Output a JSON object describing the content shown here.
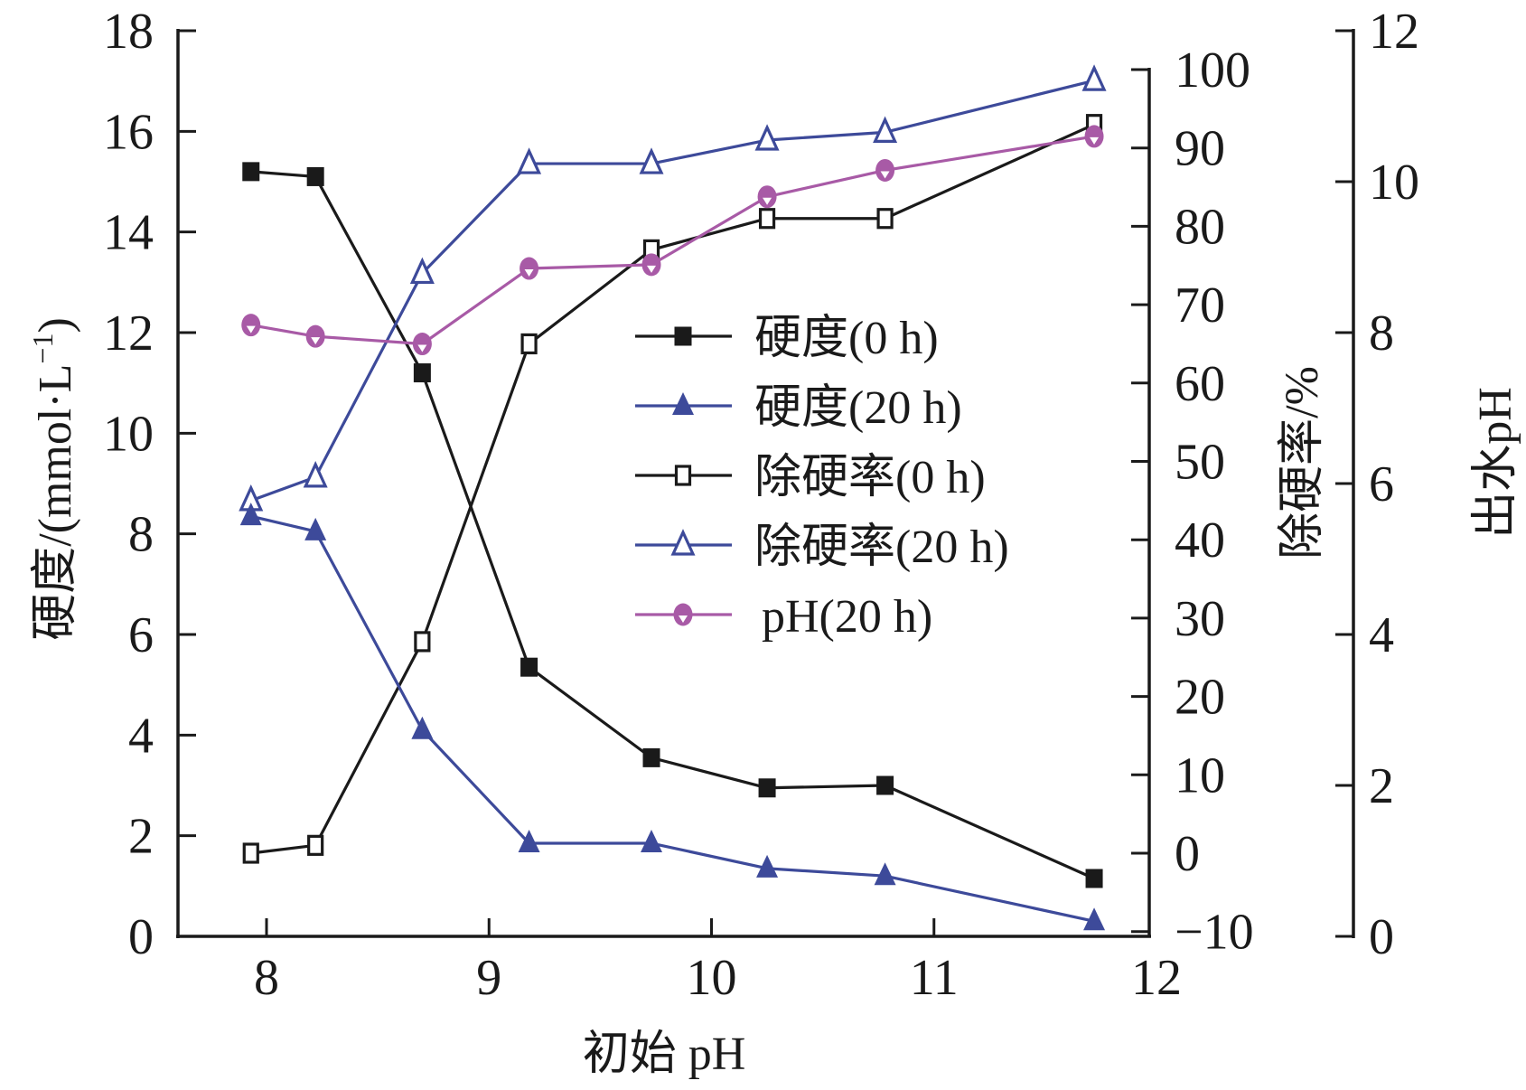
{
  "chart_data": {
    "type": "line",
    "title": "",
    "xlabel": "初始 pH",
    "xlim": [
      7.6,
      12
    ],
    "xticks": [
      "8",
      "9",
      "10",
      "11",
      "12"
    ],
    "y_axes": [
      {
        "id": "left",
        "label": "硬度/(mmol·L",
        "label_sup": "−1",
        "label_close": ")",
        "ylim": [
          0,
          18
        ],
        "ticks": [
          "0",
          "2",
          "4",
          "6",
          "8",
          "10",
          "12",
          "14",
          "16",
          "18"
        ]
      },
      {
        "id": "middle",
        "label": "除硬率/%",
        "ylim": [
          -10,
          100
        ],
        "ticks": [
          "−10",
          "0",
          "10",
          "20",
          "30",
          "40",
          "50",
          "60",
          "70",
          "80",
          "90",
          "100"
        ]
      },
      {
        "id": "right",
        "label": "出水pH",
        "ylim": [
          0,
          12
        ],
        "ticks": [
          "0",
          "2",
          "4",
          "6",
          "8",
          "10",
          "12"
        ]
      }
    ],
    "x": [
      7.93,
      8.22,
      8.7,
      9.18,
      9.73,
      10.25,
      10.78,
      11.72
    ],
    "series": [
      {
        "name": "硬度(0 h)",
        "axis": "left",
        "color": "#1a1a1a",
        "marker": "square-filled",
        "values": [
          15.2,
          15.1,
          11.2,
          5.35,
          3.55,
          2.95,
          3.0,
          1.15
        ]
      },
      {
        "name": "硬度(20 h)",
        "axis": "left",
        "color": "#3d4a9a",
        "marker": "triangle-filled",
        "values": [
          8.35,
          8.05,
          4.1,
          1.85,
          1.85,
          1.35,
          1.2,
          0.3
        ]
      },
      {
        "name": "除硬率(0 h)",
        "axis": "middle",
        "color": "#1a1a1a",
        "marker": "square-open",
        "values": [
          0,
          1,
          27,
          65,
          77,
          81,
          81,
          93
        ]
      },
      {
        "name": "除硬率(20 h)",
        "axis": "middle",
        "color": "#3d4a9a",
        "marker": "triangle-open",
        "values": [
          45,
          48,
          74,
          88,
          88,
          91,
          92,
          98.6
        ]
      },
      {
        "name": "pH(20 h)",
        "axis": "right",
        "color": "#a85aa6",
        "marker": "circle-filled",
        "values": [
          8.1,
          7.95,
          7.85,
          8.85,
          8.9,
          9.8,
          10.15,
          10.6
        ]
      }
    ],
    "legend": {
      "position": "center-right",
      "entries": [
        "硬度(0 h)",
        "硬度(20 h)",
        "除硬率(0 h)",
        "除硬率(20 h)",
        "pH(20 h)"
      ]
    },
    "grid": false
  }
}
